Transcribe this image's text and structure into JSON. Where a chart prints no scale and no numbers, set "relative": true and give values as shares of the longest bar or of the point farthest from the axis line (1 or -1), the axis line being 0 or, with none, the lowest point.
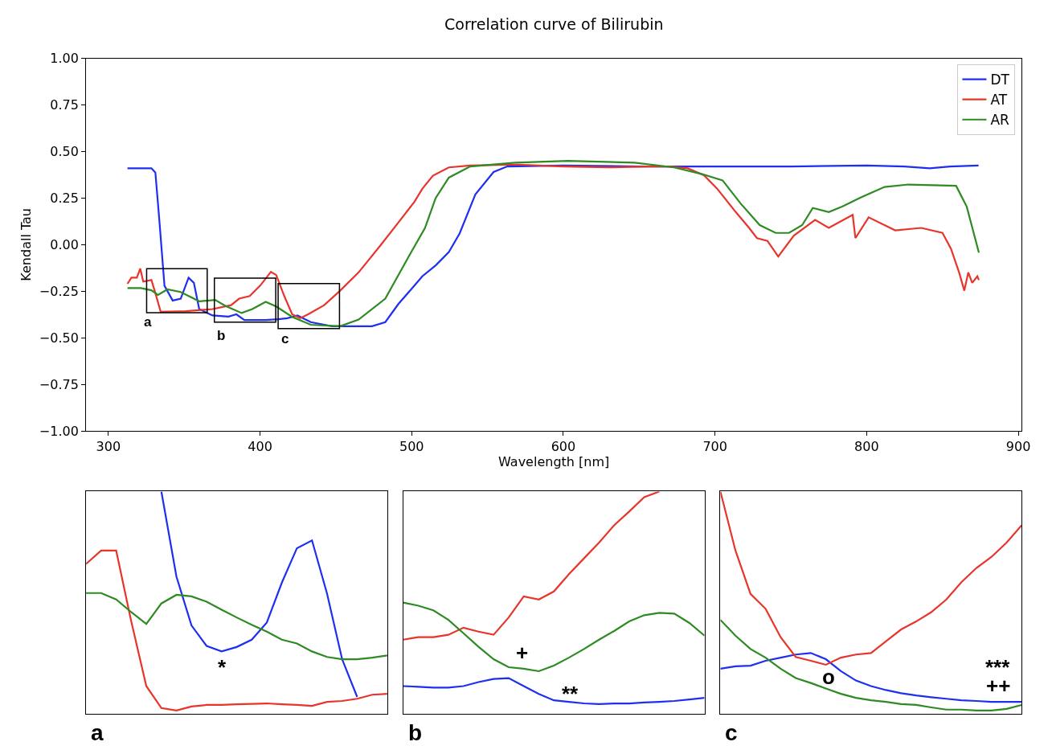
{
  "chart_data": [
    {
      "type": "line",
      "title": "Correlation curve of Bilirubin",
      "xlabel": "Wavelength [nm]",
      "ylabel": "Kendall Tau",
      "xlim": [
        285.3,
        902.2
      ],
      "ylim": [
        -1,
        1
      ],
      "xticks": [
        300,
        400,
        500,
        600,
        700,
        800,
        900
      ],
      "yticks": [
        {
          "value": 1,
          "label": "1.00"
        },
        {
          "value": 0.75,
          "label": "0.75"
        },
        {
          "value": 0.5,
          "label": "0.50"
        },
        {
          "value": 0.25,
          "label": "0.25"
        },
        {
          "value": 0,
          "label": "0.00"
        },
        {
          "value": -0.25,
          "label": "−0.25"
        },
        {
          "value": -0.5,
          "label": "−0.50"
        },
        {
          "value": -0.75,
          "label": "−0.75"
        },
        {
          "value": -1,
          "label": "−1.00"
        }
      ],
      "grid": false,
      "legend": "top right",
      "line_style": "solid",
      "marker": "none",
      "annotations": [
        "a",
        "b",
        "c"
      ],
      "series": [
        {
          "name": "DT",
          "color": "#1f2fef",
          "x": [
            312.6,
            328.4,
            331,
            333.6,
            337,
            342.4,
            347.7,
            352.9,
            356.4,
            359.9,
            368.7,
            379.2,
            384.4,
            389.7,
            403.7,
            412,
            418,
            424.7,
            433.5,
            447.5,
            473.8,
            482.6,
            491.3,
            501.8,
            507,
            516,
            524.5,
            531.6,
            542,
            554,
            563,
            600,
            650,
            700,
            750,
            800,
            825,
            841.6,
            855,
            873.8
          ],
          "values": [
            0.41,
            0.41,
            0.387,
            0.133,
            -0.22,
            -0.3,
            -0.29,
            -0.177,
            -0.205,
            -0.346,
            -0.38,
            -0.386,
            -0.374,
            -0.405,
            -0.405,
            -0.4,
            -0.395,
            -0.38,
            -0.416,
            -0.438,
            -0.438,
            -0.416,
            -0.318,
            -0.22,
            -0.17,
            -0.11,
            -0.04,
            0.06,
            0.27,
            0.39,
            0.42,
            0.425,
            0.42,
            0.42,
            0.42,
            0.425,
            0.42,
            0.41,
            0.42,
            0.425
          ]
        },
        {
          "name": "AT",
          "color": "#e8352b",
          "x": [
            312.6,
            315.2,
            318.8,
            321,
            323,
            328.4,
            331,
            334.5,
            351.1,
            368.7,
            380.9,
            386.2,
            393.2,
            400.2,
            407.2,
            410.7,
            416,
            421.2,
            426.5,
            431.7,
            442.3,
            452.8,
            465,
            479,
            491.3,
            501.8,
            507,
            514,
            524.5,
            538.6,
            570,
            600,
            630,
            656,
            670,
            682,
            692.7,
            701.5,
            713.7,
            722.5,
            727.7,
            734.6,
            741.7,
            752,
            766,
            775,
            790.8,
            792.6,
            801.3,
            818.8,
            836,
            850,
            855.6,
            861,
            864.4,
            867,
            869.6,
            873,
            874
          ],
          "values": [
            -0.21,
            -0.177,
            -0.177,
            -0.128,
            -0.198,
            -0.19,
            -0.26,
            -0.36,
            -0.357,
            -0.346,
            -0.325,
            -0.29,
            -0.276,
            -0.219,
            -0.146,
            -0.163,
            -0.276,
            -0.374,
            -0.395,
            -0.374,
            -0.325,
            -0.247,
            -0.149,
            -0.008,
            0.12,
            0.23,
            0.3,
            0.37,
            0.415,
            0.425,
            0.43,
            0.42,
            0.415,
            0.42,
            0.42,
            0.41,
            0.373,
            0.3,
            0.175,
            0.09,
            0.035,
            0.02,
            -0.064,
            0.049,
            0.133,
            0.09,
            0.16,
            0.035,
            0.147,
            0.077,
            0.09,
            0.063,
            -0.022,
            -0.15,
            -0.247,
            -0.149,
            -0.205,
            -0.17,
            -0.19
          ]
        },
        {
          "name": "AR",
          "color": "#2e8a22",
          "x": [
            312.6,
            321.4,
            328.4,
            332.7,
            338.9,
            347.7,
            359.9,
            370.4,
            377.4,
            387.9,
            394.9,
            403.7,
            410.7,
            421.2,
            433.5,
            452.8,
            465,
            482.6,
            498.3,
            508.8,
            515.8,
            524.5,
            538.6,
            568,
            603,
            647,
            673,
            691,
            705,
            717,
            729.5,
            740,
            748.8,
            757.5,
            764.5,
            775,
            783.8,
            796,
            811.8,
            827.6,
            859,
            866,
            874
          ],
          "values": [
            -0.233,
            -0.233,
            -0.245,
            -0.27,
            -0.24,
            -0.254,
            -0.304,
            -0.297,
            -0.33,
            -0.367,
            -0.346,
            -0.307,
            -0.332,
            -0.388,
            -0.43,
            -0.438,
            -0.402,
            -0.29,
            -0.06,
            0.09,
            0.25,
            0.36,
            0.42,
            0.44,
            0.45,
            0.44,
            0.415,
            0.38,
            0.345,
            0.22,
            0.105,
            0.063,
            0.063,
            0.105,
            0.197,
            0.175,
            0.204,
            0.253,
            0.31,
            0.323,
            0.316,
            0.204,
            -0.043
          ]
        }
      ]
    },
    {
      "type": "line",
      "title": "a",
      "relative": true,
      "grid": false,
      "legend": false,
      "categories": [
        null,
        null,
        null,
        null,
        null,
        null,
        null,
        null,
        null,
        null,
        null,
        null,
        null,
        null,
        null,
        null,
        null,
        null,
        null,
        null,
        null
      ],
      "annotations": [
        "*"
      ],
      "series": [
        {
          "color": "#1f2fef",
          "values": [
            null,
            null,
            null,
            null,
            null,
            1.0,
            0.617,
            0.397,
            0.305,
            0.28,
            0.3,
            0.333,
            0.41,
            0.59,
            0.745,
            0.78,
            0.54,
            0.245,
            0.075,
            null,
            null
          ]
        },
        {
          "color": "#e8352b",
          "values": [
            0.674,
            0.734,
            0.734,
            0.415,
            0.124,
            0.025,
            0.014,
            0.032,
            0.039,
            0.039,
            0.042,
            0.044,
            0.046,
            0.042,
            0.039,
            0.035,
            0.053,
            0.057,
            0.067,
            0.085,
            0.089
          ]
        },
        {
          "color": "#2e8a22",
          "values": [
            0.543,
            0.543,
            0.514,
            0.457,
            0.404,
            0.496,
            0.535,
            0.528,
            0.504,
            0.468,
            0.433,
            0.4,
            0.369,
            0.333,
            0.316,
            0.28,
            0.255,
            0.245,
            0.245,
            0.252,
            0.262
          ]
        }
      ]
    },
    {
      "type": "line",
      "title": "b",
      "relative": true,
      "grid": false,
      "legend": false,
      "categories": [
        null,
        null,
        null,
        null,
        null,
        null,
        null,
        null,
        null,
        null,
        null,
        null,
        null,
        null,
        null,
        null,
        null,
        null,
        null,
        null,
        null
      ],
      "annotations": [
        "+",
        "**"
      ],
      "series": [
        {
          "color": "#1f2fef",
          "values": [
            0.124,
            0.121,
            0.117,
            0.117,
            0.124,
            0.142,
            0.156,
            0.16,
            0.124,
            0.089,
            0.06,
            0.053,
            0.046,
            0.043,
            0.046,
            0.046,
            0.05,
            0.053,
            0.057,
            0.064,
            0.071
          ]
        },
        {
          "color": "#e8352b",
          "values": [
            0.333,
            0.344,
            0.344,
            0.355,
            0.387,
            0.369,
            0.355,
            0.433,
            0.528,
            0.514,
            0.55,
            0.628,
            0.699,
            0.77,
            0.848,
            0.91,
            0.975,
            1.0,
            null,
            null,
            null
          ]
        },
        {
          "color": "#2e8a22",
          "values": [
            0.5,
            0.486,
            0.465,
            0.422,
            0.362,
            0.301,
            0.245,
            0.209,
            0.202,
            0.191,
            0.216,
            0.252,
            0.291,
            0.333,
            0.372,
            0.415,
            0.443,
            0.454,
            0.45,
            0.408,
            0.351
          ]
        }
      ]
    },
    {
      "type": "line",
      "title": "c",
      "relative": true,
      "grid": false,
      "legend": false,
      "categories": [
        null,
        null,
        null,
        null,
        null,
        null,
        null,
        null,
        null,
        null,
        null,
        null,
        null,
        null,
        null,
        null,
        null,
        null,
        null,
        null,
        null
      ],
      "annotations": [
        "o",
        "***",
        "++"
      ],
      "series": [
        {
          "color": "#1f2fef",
          "values": [
            0.202,
            0.213,
            0.216,
            0.238,
            0.252,
            0.266,
            0.273,
            0.245,
            0.191,
            0.149,
            0.124,
            0.106,
            0.092,
            0.082,
            0.074,
            0.067,
            0.06,
            0.057,
            0.053,
            0.053,
            0.053
          ]
        },
        {
          "color": "#e8352b",
          "values": [
            1.0,
            0.734,
            0.539,
            0.472,
            0.344,
            0.255,
            0.238,
            0.22,
            0.252,
            0.266,
            0.273,
            0.326,
            0.379,
            0.415,
            0.457,
            0.514,
            0.592,
            0.656,
            0.706,
            0.77,
            0.848
          ]
        },
        {
          "color": "#2e8a22",
          "values": [
            0.422,
            0.351,
            0.291,
            0.252,
            0.202,
            0.16,
            0.138,
            0.113,
            0.089,
            0.071,
            0.06,
            0.053,
            0.043,
            0.039,
            0.028,
            0.018,
            0.018,
            0.014,
            0.014,
            0.021,
            0.039
          ]
        }
      ]
    }
  ]
}
